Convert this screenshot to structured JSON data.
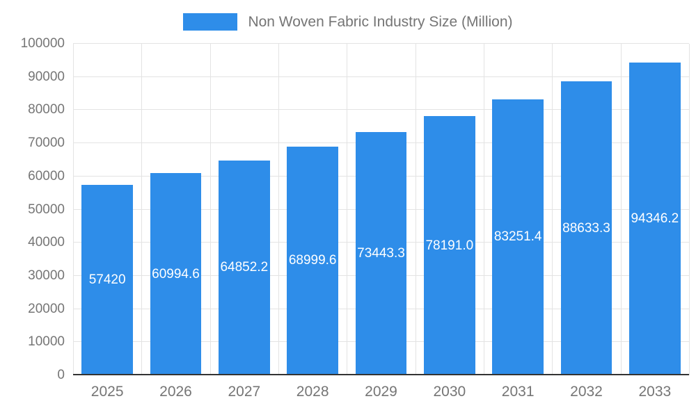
{
  "colors": {
    "bar": "#2E8DE9",
    "grid": "#E3E3E3",
    "axis": "#333333",
    "text": "#757575",
    "value_label": "#FFFFFF",
    "background": "#FFFFFF"
  },
  "legend": {
    "label": "Non Woven Fabric Industry Size (Million)"
  },
  "chart_data": {
    "type": "bar",
    "title": "Non Woven Fabric Industry Size (Million)",
    "categories": [
      "2025",
      "2026",
      "2027",
      "2028",
      "2029",
      "2030",
      "2031",
      "2032",
      "2033"
    ],
    "values": [
      57420,
      60994.6,
      64852.2,
      68999.6,
      73443.3,
      78191.0,
      83251.4,
      88633.3,
      94346.2
    ],
    "value_labels": [
      "57420",
      "60994.6",
      "64852.2",
      "68999.6",
      "73443.3",
      "78191.0",
      "83251.4",
      "88633.3",
      "94346.2"
    ],
    "xlabel": "",
    "ylabel": "",
    "ylim": [
      0,
      100000
    ],
    "ytick_step": 10000,
    "ytick_labels": [
      "0",
      "10000",
      "20000",
      "30000",
      "40000",
      "50000",
      "60000",
      "70000",
      "80000",
      "90000",
      "100000"
    ],
    "grid": true,
    "legend_position": "top",
    "bar_label_position": "middle",
    "bar_width_ratio": 0.75
  }
}
